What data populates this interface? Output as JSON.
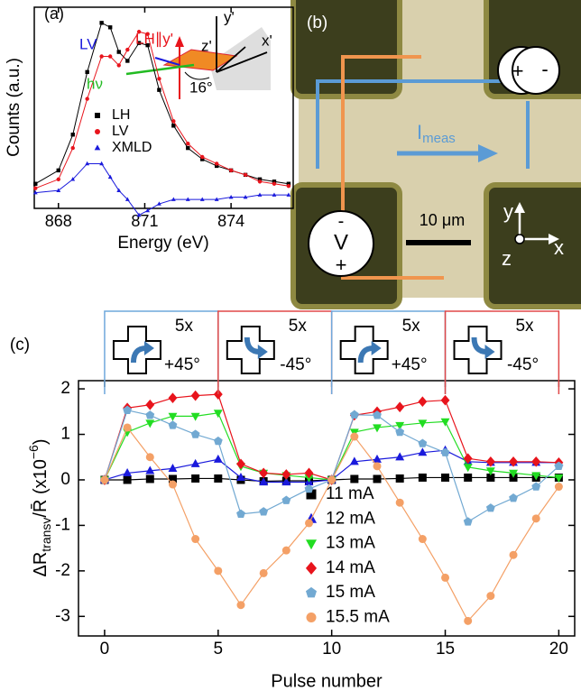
{
  "chart_data": [
    {
      "type": "line",
      "panel_label": "(a)",
      "x_label": "Energy (eV)",
      "y_label": "Counts (a.u.)",
      "xlim": [
        867.16,
        876.16
      ],
      "xticks": [
        868,
        871,
        874
      ],
      "ylim": [
        0.1,
        1.0
      ],
      "x": [
        867.2,
        868,
        868.5,
        869,
        869.5,
        869.8,
        870.1,
        870.4,
        870.8,
        871.1,
        871.5,
        872,
        872.5,
        873,
        873.5,
        874,
        874.5,
        875,
        875.5,
        876
      ],
      "series": [
        {
          "name": "LH",
          "color": "#000000",
          "marker": "square",
          "values": [
            0.21,
            0.27,
            0.43,
            0.71,
            0.93,
            0.91,
            0.8,
            0.76,
            0.84,
            0.83,
            0.63,
            0.47,
            0.37,
            0.32,
            0.29,
            0.27,
            0.25,
            0.23,
            0.22,
            0.21
          ]
        },
        {
          "name": "LV",
          "color": "#e8141c",
          "marker": "circle",
          "values": [
            0.19,
            0.23,
            0.37,
            0.59,
            0.78,
            0.78,
            0.74,
            0.81,
            0.89,
            0.88,
            0.68,
            0.49,
            0.39,
            0.33,
            0.3,
            0.27,
            0.25,
            0.22,
            0.21,
            0.2
          ]
        },
        {
          "name": "XMLD",
          "color": "#1a1adc",
          "marker": "triangle",
          "values": [
            0.17,
            0.18,
            0.23,
            0.3,
            0.3,
            0.24,
            0.18,
            0.14,
            0.07,
            0.09,
            0.12,
            0.14,
            0.14,
            0.14,
            0.14,
            0.15,
            0.15,
            0.16,
            0.16,
            0.16
          ]
        }
      ],
      "inset": {
        "lh": "LH∥y'",
        "lv": "LV",
        "hv": "hν",
        "z": "z'",
        "y": "y'",
        "x": "x'",
        "angle": "16°"
      }
    },
    {
      "type": "line",
      "panel_label": "(c)",
      "x_label": "Pulse number",
      "y_label": [
        "ΔR",
        "transv",
        "/R̄ (x10",
        "−6",
        ")"
      ],
      "xlim": [
        -1.15,
        20.7
      ],
      "xticks": [
        0,
        5,
        10,
        15,
        20
      ],
      "ylim": [
        -3.43,
        2.18
      ],
      "yticks": [
        -3,
        -2,
        -1,
        0,
        1,
        2
      ],
      "x": [
        0,
        1,
        2,
        3,
        4,
        5,
        6,
        7,
        8,
        9,
        10,
        11,
        12,
        13,
        14,
        15,
        16,
        17,
        18,
        19,
        20
      ],
      "series": [
        {
          "name": "11 mA",
          "color": "#000000",
          "marker": "square",
          "values": [
            0,
            0,
            0.02,
            0.02,
            0.03,
            0.03,
            0,
            -0.03,
            -0.02,
            -0.02,
            0,
            0.02,
            0.02,
            0.03,
            0.05,
            0.05,
            0.05,
            0.05,
            0.05,
            0.05,
            0.05
          ]
        },
        {
          "name": "12 mA",
          "color": "#1a1adc",
          "marker": "triangle",
          "values": [
            0,
            0.15,
            0.2,
            0.25,
            0.35,
            0.45,
            0.05,
            -0.05,
            -0.05,
            -0.05,
            0,
            0.4,
            0.45,
            0.5,
            0.6,
            0.65,
            0.4,
            0.38,
            0.38,
            0.38,
            0.38
          ]
        },
        {
          "name": "13 mA",
          "color": "#22dd22",
          "marker": "tri-down",
          "values": [
            0,
            1.05,
            1.25,
            1.4,
            1.4,
            1.47,
            0.3,
            0.15,
            0.1,
            0.05,
            0,
            1.05,
            1.15,
            1.2,
            1.25,
            1.28,
            0.28,
            0.2,
            0.15,
            0.1,
            0.05
          ]
        },
        {
          "name": "14 mA",
          "color": "#e8141c",
          "marker": "diamond",
          "values": [
            0,
            1.58,
            1.65,
            1.8,
            1.85,
            1.88,
            0.35,
            0.15,
            0.12,
            0.15,
            0,
            1.42,
            1.5,
            1.6,
            1.72,
            1.75,
            0.47,
            0.4,
            0.4,
            0.4,
            0.38
          ]
        },
        {
          "name": "15 mA",
          "color": "#72a9d2",
          "marker": "pentagon",
          "values": [
            0,
            1.53,
            1.42,
            1.2,
            1,
            0.85,
            -0.75,
            -0.7,
            -0.45,
            -0.2,
            0,
            1.43,
            1.42,
            1.05,
            0.8,
            0.6,
            -0.92,
            -0.62,
            -0.4,
            -0.15,
            0.3
          ]
        },
        {
          "name": "15.5 mA",
          "color": "#f4a066",
          "marker": "circle",
          "values": [
            0,
            1.15,
            0.5,
            -0.1,
            -1.3,
            -2,
            -2.75,
            -2.05,
            -1.55,
            -0.95,
            0,
            0.95,
            0.3,
            -0.5,
            -1.3,
            -2.15,
            -3.1,
            -2.55,
            -1.65,
            -0.85,
            -0.15
          ]
        }
      ],
      "pulse_groups": [
        {
          "count": "5x",
          "angle": "+45°",
          "color": "#6fa8dc",
          "direction": 1
        },
        {
          "count": "5x",
          "angle": "-45°",
          "color": "#e04848",
          "direction": -1
        },
        {
          "count": "5x",
          "angle": "+45°",
          "color": "#6fa8dc",
          "direction": 1
        },
        {
          "count": "5x",
          "angle": "-45°",
          "color": "#e04848",
          "direction": -1
        }
      ]
    }
  ],
  "panel_b": {
    "label": "(b)",
    "plus": "+",
    "minus": "-",
    "current": "I",
    "current_sub": "meas",
    "scale": "10 μm",
    "v_minus": "-",
    "v": "V",
    "v_plus": "+",
    "axis_y": "y",
    "axis_x": "x",
    "axis_z": "z"
  }
}
